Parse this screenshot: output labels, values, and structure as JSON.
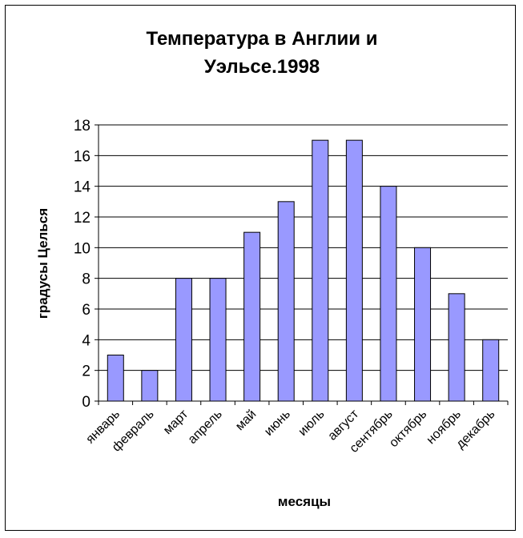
{
  "chart_data": {
    "type": "bar",
    "title_lines": [
      "Температура в Англии и",
      "Уэльсе.1998"
    ],
    "xlabel": "месяцы",
    "ylabel": "градусы Целься",
    "categories": [
      "январь",
      "февраль",
      "март",
      "апрель",
      "май",
      "июнь",
      "июль",
      "август",
      "сентябрь",
      "октябрь",
      "ноябрь",
      "декабрь"
    ],
    "values": [
      3,
      2,
      8,
      8,
      11,
      13,
      17,
      17,
      14,
      10,
      7,
      4
    ],
    "ylim": [
      0,
      18
    ],
    "yticks": [
      "0",
      "2",
      "4",
      "6",
      "8",
      "10",
      "12",
      "14",
      "16",
      "18"
    ],
    "grid": true,
    "bar_color": "#9999ff"
  }
}
